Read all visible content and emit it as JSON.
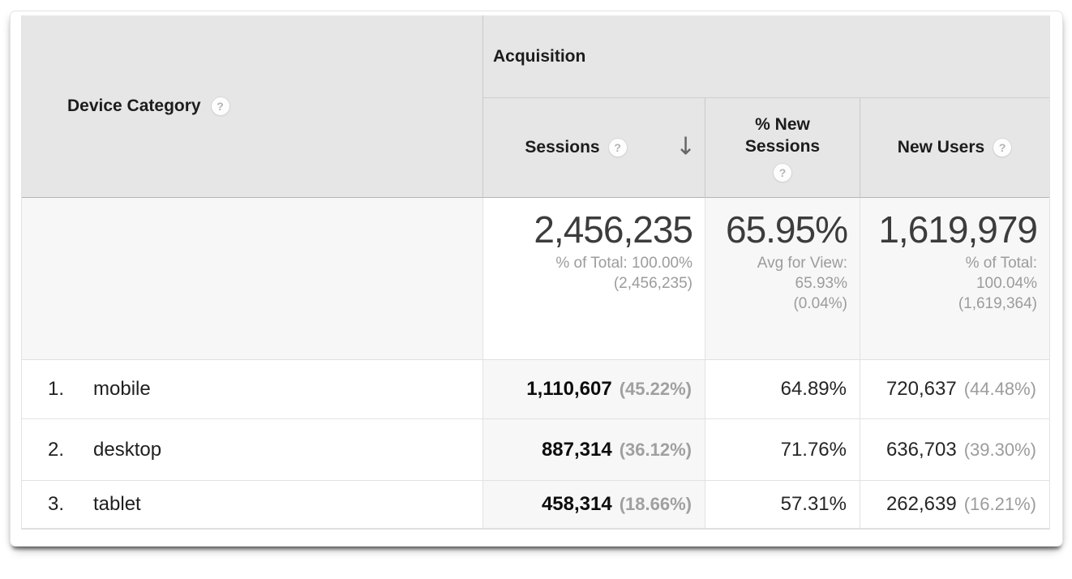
{
  "icons": {
    "help_glyph": "?",
    "sort_desc_glyph": "↓"
  },
  "table": {
    "dimension_header": {
      "label": "Device Category"
    },
    "group_header": {
      "label": "Acquisition"
    },
    "metric_headers": [
      {
        "label": "Sessions",
        "sorted": "descending"
      },
      {
        "label": "% New Sessions",
        "sorted": "none"
      },
      {
        "label": "New Users",
        "sorted": "none"
      }
    ],
    "summary": {
      "sessions": {
        "value": "2,456,235",
        "note": [
          "% of Total: 100.00%",
          "(2,456,235)"
        ]
      },
      "pct_new_sessions": {
        "value": "65.95%",
        "note": [
          "Avg for View:",
          "65.93%",
          "(0.04%)"
        ]
      },
      "new_users": {
        "value": "1,619,979",
        "note": [
          "% of Total:",
          "100.04%",
          "(1,619,364)"
        ]
      }
    },
    "rows": [
      {
        "index": "1.",
        "label": "mobile",
        "sessions": "1,110,607",
        "sessions_pct": "(45.22%)",
        "pct_new_sessions": "64.89%",
        "new_users": "720,637",
        "new_users_pct": "(44.48%)"
      },
      {
        "index": "2.",
        "label": "desktop",
        "sessions": "887,314",
        "sessions_pct": "(36.12%)",
        "pct_new_sessions": "71.76%",
        "new_users": "636,703",
        "new_users_pct": "(39.30%)"
      },
      {
        "index": "3.",
        "label": "tablet",
        "sessions": "458,314",
        "sessions_pct": "(18.66%)",
        "pct_new_sessions": "57.31%",
        "new_users": "262,639",
        "new_users_pct": "(16.21%)"
      }
    ]
  },
  "colors": {
    "header_bg": "#e6e6e6",
    "sorted_column_bg": "#f7f7f7",
    "summary_bg": "#f7f7f7",
    "text_primary": "#1f1f1f",
    "text_secondary": "#9c9c9c",
    "sort_arrow": "#666666"
  }
}
